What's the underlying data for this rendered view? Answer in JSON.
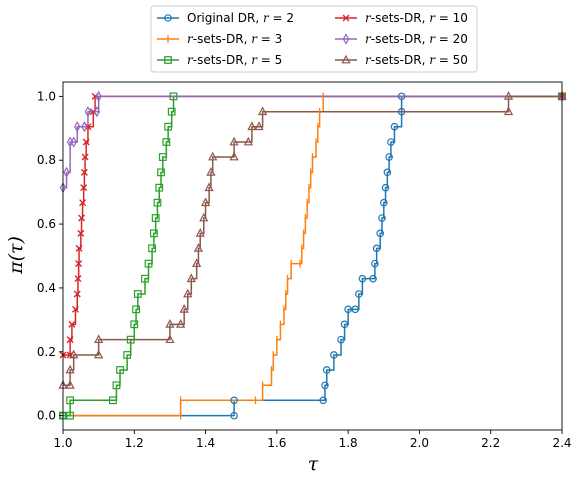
{
  "chart_data": {
    "type": "line",
    "style": "step",
    "xlabel": "τ",
    "ylabel": "π(τ)",
    "xlim": [
      1.0,
      2.4
    ],
    "ylim": [
      -0.045,
      1.045
    ],
    "x_ticks": [
      "1.0",
      "1.2",
      "1.4",
      "1.6",
      "1.8",
      "2.0",
      "2.2",
      "2.4"
    ],
    "y_ticks": [
      "0.0",
      "0.2",
      "0.4",
      "0.6",
      "0.8",
      "1.0"
    ],
    "grid": false,
    "legend_position": "above plot, two columns",
    "series": [
      {
        "name": "Original DR, r = 2",
        "legend_plain": "Original DR, ",
        "color": "#1f77b4",
        "marker": "circle",
        "points": [
          [
            1.0,
            0.0
          ],
          [
            1.48,
            0.0
          ],
          [
            1.48,
            0.048
          ],
          [
            1.73,
            0.048
          ],
          [
            1.735,
            0.095
          ],
          [
            1.74,
            0.143
          ],
          [
            1.76,
            0.19
          ],
          [
            1.78,
            0.238
          ],
          [
            1.79,
            0.286
          ],
          [
            1.8,
            0.333
          ],
          [
            1.82,
            0.333
          ],
          [
            1.83,
            0.381
          ],
          [
            1.84,
            0.429
          ],
          [
            1.87,
            0.429
          ],
          [
            1.875,
            0.476
          ],
          [
            1.88,
            0.524
          ],
          [
            1.89,
            0.571
          ],
          [
            1.895,
            0.619
          ],
          [
            1.9,
            0.667
          ],
          [
            1.905,
            0.714
          ],
          [
            1.91,
            0.762
          ],
          [
            1.915,
            0.81
          ],
          [
            1.92,
            0.857
          ],
          [
            1.93,
            0.905
          ],
          [
            1.95,
            0.952
          ],
          [
            1.95,
            1.0
          ],
          [
            2.4,
            1.0
          ]
        ]
      },
      {
        "name": "r-sets-DR, r = 3",
        "legend_plain": "-sets-DR, ",
        "legend_r": "3",
        "color": "#ff7f0e",
        "marker": "vline",
        "points": [
          [
            1.0,
            0.0
          ],
          [
            1.33,
            0.0
          ],
          [
            1.33,
            0.048
          ],
          [
            1.54,
            0.048
          ],
          [
            1.56,
            0.095
          ],
          [
            1.585,
            0.143
          ],
          [
            1.59,
            0.19
          ],
          [
            1.6,
            0.238
          ],
          [
            1.61,
            0.286
          ],
          [
            1.62,
            0.333
          ],
          [
            1.625,
            0.381
          ],
          [
            1.63,
            0.429
          ],
          [
            1.64,
            0.476
          ],
          [
            1.665,
            0.476
          ],
          [
            1.67,
            0.524
          ],
          [
            1.675,
            0.571
          ],
          [
            1.68,
            0.619
          ],
          [
            1.685,
            0.667
          ],
          [
            1.69,
            0.714
          ],
          [
            1.695,
            0.762
          ],
          [
            1.7,
            0.81
          ],
          [
            1.71,
            0.857
          ],
          [
            1.715,
            0.905
          ],
          [
            1.72,
            0.952
          ],
          [
            1.73,
            1.0
          ],
          [
            2.4,
            1.0
          ]
        ]
      },
      {
        "name": "r-sets-DR, r = 5",
        "legend_plain": "-sets-DR, ",
        "legend_r": "5",
        "color": "#2ca02c",
        "marker": "square",
        "points": [
          [
            1.0,
            0.0
          ],
          [
            1.02,
            0.0
          ],
          [
            1.02,
            0.048
          ],
          [
            1.14,
            0.048
          ],
          [
            1.15,
            0.095
          ],
          [
            1.16,
            0.143
          ],
          [
            1.18,
            0.19
          ],
          [
            1.19,
            0.238
          ],
          [
            1.2,
            0.286
          ],
          [
            1.205,
            0.333
          ],
          [
            1.21,
            0.381
          ],
          [
            1.23,
            0.429
          ],
          [
            1.24,
            0.476
          ],
          [
            1.25,
            0.524
          ],
          [
            1.255,
            0.571
          ],
          [
            1.26,
            0.619
          ],
          [
            1.265,
            0.667
          ],
          [
            1.27,
            0.714
          ],
          [
            1.275,
            0.762
          ],
          [
            1.28,
            0.81
          ],
          [
            1.29,
            0.857
          ],
          [
            1.295,
            0.905
          ],
          [
            1.305,
            0.952
          ],
          [
            1.31,
            1.0
          ],
          [
            2.4,
            1.0
          ]
        ]
      },
      {
        "name": "r-sets-DR, r = 10",
        "legend_plain": "-sets-DR, ",
        "legend_r": "10",
        "color": "#d62728",
        "marker": "x",
        "points": [
          [
            1.0,
            0.19
          ],
          [
            1.02,
            0.19
          ],
          [
            1.02,
            0.238
          ],
          [
            1.025,
            0.286
          ],
          [
            1.035,
            0.333
          ],
          [
            1.04,
            0.381
          ],
          [
            1.042,
            0.429
          ],
          [
            1.044,
            0.476
          ],
          [
            1.045,
            0.524
          ],
          [
            1.05,
            0.571
          ],
          [
            1.052,
            0.619
          ],
          [
            1.055,
            0.667
          ],
          [
            1.058,
            0.714
          ],
          [
            1.06,
            0.762
          ],
          [
            1.062,
            0.81
          ],
          [
            1.065,
            0.857
          ],
          [
            1.07,
            0.905
          ],
          [
            1.085,
            0.952
          ],
          [
            1.09,
            1.0
          ],
          [
            2.4,
            1.0
          ]
        ]
      },
      {
        "name": "r-sets-DR, r = 20",
        "legend_plain": "-sets-DR, ",
        "legend_r": "20",
        "color": "#9467bd",
        "marker": "thin_diamond",
        "points": [
          [
            1.0,
            0.714
          ],
          [
            1.01,
            0.762
          ],
          [
            1.02,
            0.857
          ],
          [
            1.03,
            0.857
          ],
          [
            1.04,
            0.905
          ],
          [
            1.06,
            0.905
          ],
          [
            1.07,
            0.952
          ],
          [
            1.095,
            0.952
          ],
          [
            1.1,
            1.0
          ],
          [
            2.4,
            1.0
          ]
        ]
      },
      {
        "name": "r-sets-DR, r = 50",
        "legend_plain": "-sets-DR, ",
        "legend_r": "50",
        "color": "#8c564b",
        "marker": "triangle",
        "points": [
          [
            1.0,
            0.095
          ],
          [
            1.02,
            0.095
          ],
          [
            1.02,
            0.143
          ],
          [
            1.03,
            0.19
          ],
          [
            1.1,
            0.19
          ],
          [
            1.1,
            0.238
          ],
          [
            1.3,
            0.238
          ],
          [
            1.3,
            0.286
          ],
          [
            1.33,
            0.286
          ],
          [
            1.34,
            0.333
          ],
          [
            1.35,
            0.381
          ],
          [
            1.36,
            0.429
          ],
          [
            1.375,
            0.476
          ],
          [
            1.38,
            0.524
          ],
          [
            1.385,
            0.571
          ],
          [
            1.395,
            0.619
          ],
          [
            1.4,
            0.667
          ],
          [
            1.41,
            0.714
          ],
          [
            1.415,
            0.762
          ],
          [
            1.42,
            0.81
          ],
          [
            1.48,
            0.81
          ],
          [
            1.48,
            0.857
          ],
          [
            1.52,
            0.857
          ],
          [
            1.53,
            0.905
          ],
          [
            1.55,
            0.905
          ],
          [
            1.56,
            0.952
          ],
          [
            2.25,
            0.952
          ],
          [
            2.25,
            1.0
          ],
          [
            2.4,
            1.0
          ]
        ]
      }
    ]
  }
}
